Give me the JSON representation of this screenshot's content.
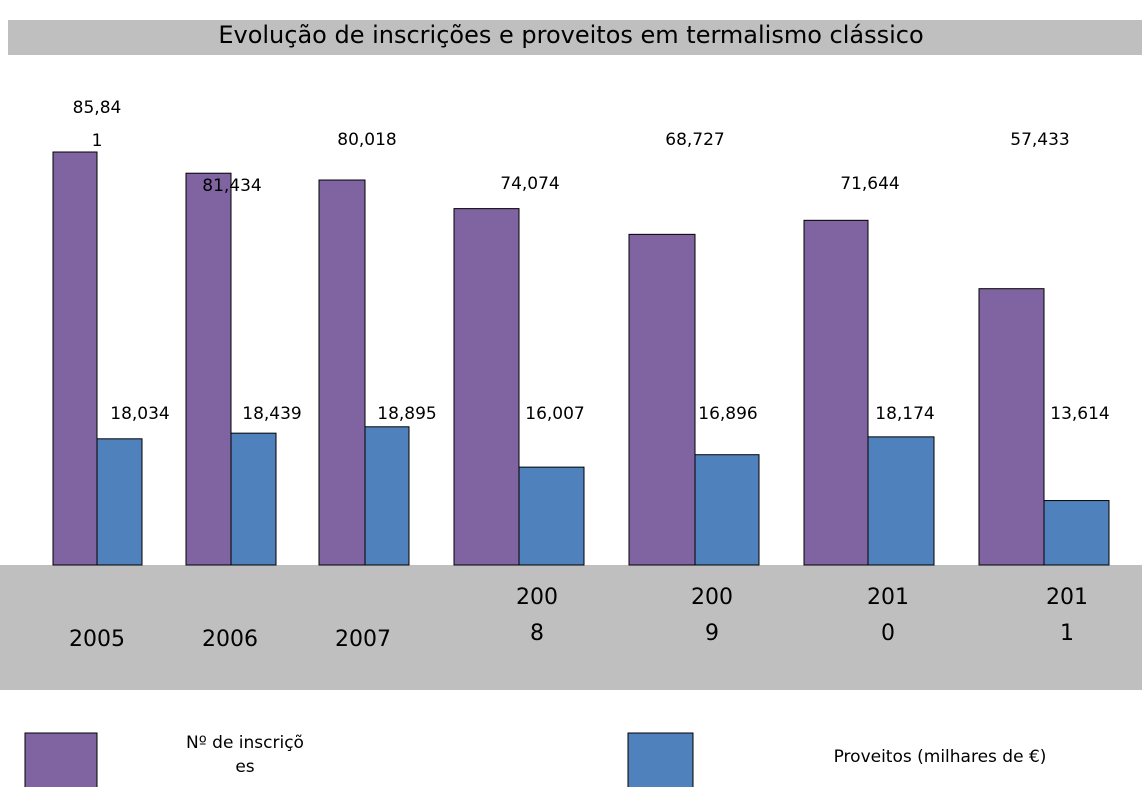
{
  "chart_data": {
    "type": "bar",
    "title": "Evolução de inscrições e proveitos em termalismo clássico",
    "categories": [
      "2005",
      "2006",
      "2007",
      "2008",
      "2009",
      "2010",
      "2011"
    ],
    "series": [
      {
        "name": "Nº de inscrições",
        "color": "#8064a2",
        "axis": "y",
        "values": [
          85841,
          81434,
          80018,
          74074,
          68727,
          71644,
          57433
        ],
        "value_labels": [
          "85,841",
          "81,434",
          "80,018",
          "74,074",
          "68,727",
          "71,644",
          "57,433"
        ]
      },
      {
        "name": "Proveitos (milhares de €)",
        "color": "#4f81bd",
        "axis": "y2",
        "values": [
          18034,
          18439,
          18895,
          16007,
          16896,
          18174,
          13614
        ],
        "value_labels": [
          "18,034",
          "18,439",
          "18,895",
          "16,007",
          "16,896",
          "18,174",
          "13,614"
        ]
      }
    ],
    "ylim": [
      0,
      90000
    ],
    "y2lim": [
      9000,
      40000
    ]
  }
}
